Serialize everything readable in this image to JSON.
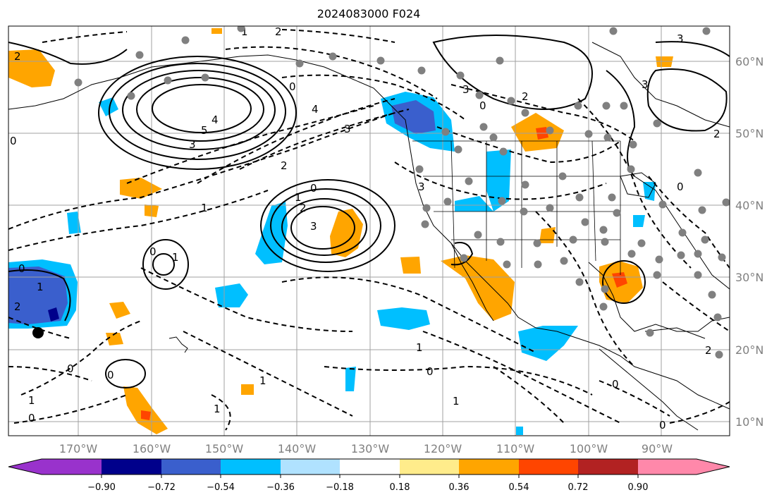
{
  "title": "2024083000 F024",
  "map": {
    "lon_range": [
      -180,
      -81
    ],
    "lat_range": [
      8,
      65
    ],
    "lon_ticks": [
      -170,
      -160,
      -150,
      -140,
      -130,
      -120,
      -110,
      -100,
      -90
    ],
    "lat_ticks": [
      10,
      20,
      30,
      40,
      50,
      60
    ],
    "lon_tick_labels": [
      "170°W",
      "160°W",
      "150°W",
      "140°W",
      "130°W",
      "120°W",
      "110°W",
      "100°W",
      "90°W"
    ],
    "lat_tick_labels": [
      "10°N",
      "20°N",
      "30°N",
      "40°N",
      "50°N",
      "60°N"
    ],
    "grid": true,
    "coastlines": true,
    "state_borders": true,
    "contour_labels": [
      "1",
      "2",
      "3",
      "2",
      "4",
      "0",
      "3",
      "4",
      "5",
      "2",
      "3",
      "1",
      "0",
      "3",
      "2",
      "1",
      "0",
      "1",
      "1",
      "0",
      "2",
      "3",
      "0",
      "3",
      "0",
      "2",
      "3",
      "1",
      "0",
      "1",
      "0",
      "1",
      "0",
      "0",
      "1",
      "0",
      "2",
      "0",
      "1",
      "2",
      "0"
    ]
  },
  "colorbar": {
    "tick_labels": [
      "−0.90",
      "−0.72",
      "−0.54",
      "−0.36",
      "−0.18",
      "0.18",
      "0.36",
      "0.54",
      "0.72",
      "0.90"
    ],
    "colors": [
      "#9932cc",
      "#00008b",
      "#3a5fcd",
      "#00bfff",
      "#b0e2ff",
      "#ffffff",
      "#ffec8b",
      "#ffa500",
      "#ff4500",
      "#b22222",
      "#ff88aa"
    ]
  },
  "chart_data": {
    "type": "heatmap",
    "title": "2024083000 F024",
    "field_bins": [
      -0.9,
      -0.72,
      -0.54,
      -0.36,
      -0.18,
      0.18,
      0.36,
      0.54,
      0.72,
      0.9
    ],
    "solid_contours_positive_levels": [
      1,
      2,
      3,
      4,
      5
    ],
    "dashed_contours_negative_levels": [
      0,
      1,
      2,
      3,
      4
    ],
    "station_points": "gray dots scattered over land",
    "marker": {
      "lon": -176,
      "lat": 22.3
    }
  }
}
